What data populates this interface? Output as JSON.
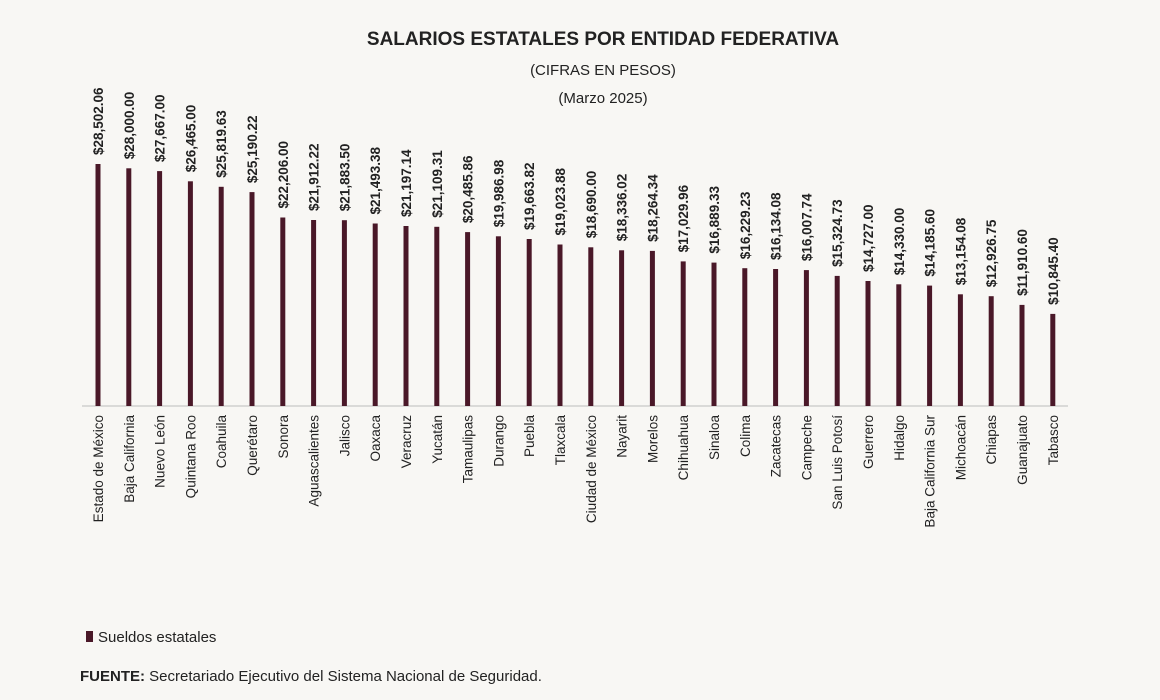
{
  "chart_data": {
    "type": "bar",
    "title": "SALARIOS ESTATALES POR ENTIDAD FEDERATIVA",
    "subtitle": "(CIFRAS EN PESOS)",
    "period": "(Marzo 2025)",
    "categories": [
      "Estado de México",
      "Baja California",
      "Nuevo León",
      "Quintana Roo",
      "Coahuila",
      "Querétaro",
      "Sonora",
      "Aguascalientes",
      "Jalisco",
      "Oaxaca",
      "Veracruz",
      "Yucatán",
      "Tamaulipas",
      "Durango",
      "Puebla",
      "Tlaxcala",
      "Ciudad de México",
      "Nayarit",
      "Morelos",
      "Chihuahua",
      "Sinaloa",
      "Colima",
      "Zacatecas",
      "Campeche",
      "San Luis Potosí",
      "Guerrero",
      "Hidalgo",
      "Baja California Sur",
      "Michoacán",
      "Chiapas",
      "Guanajuato",
      "Tabasco"
    ],
    "series": [
      {
        "name": "Sueldos estatales",
        "values": [
          28502.06,
          28000.0,
          27667.0,
          26465.0,
          25819.63,
          25190.22,
          22206.0,
          21912.22,
          21883.5,
          21493.38,
          21197.14,
          21109.31,
          20485.86,
          19986.98,
          19663.82,
          19023.88,
          18690.0,
          18336.02,
          18264.34,
          17029.96,
          16889.33,
          16229.23,
          16134.08,
          16007.74,
          15324.73,
          14727.0,
          14330.0,
          14185.6,
          13154.08,
          12926.75,
          11910.6,
          10845.4
        ],
        "labels": [
          "$28,502.06",
          "$28,000.00",
          "$27,667.00",
          "$26,465.00",
          "$25,819.63",
          "$25,190.22",
          "$22,206.00",
          "$21,912.22",
          "$21,883.50",
          "$21,493.38",
          "$21,197.14",
          "$21,109.31",
          "$20,485.86",
          "$19,986.98",
          "$19,663.82",
          "$19,023.88",
          "$18,690.00",
          "$18,336.02",
          "$18,264.34",
          "$17,029.96",
          "$16,889.33",
          "$16,229.23",
          "$16,134.08",
          "$16,007.74",
          "$15,324.73",
          "$14,727.00",
          "$14,330.00",
          "$14,185.60",
          "$13,154.08",
          "$12,926.75",
          "$11,910.60",
          "$10,845.40"
        ]
      }
    ],
    "ylim": [
      0,
      28502.06
    ],
    "grid": false,
    "legend_position": "bottom-left",
    "bar_color": "#4a1828"
  },
  "source": {
    "label": "FUENTE:",
    "text": " Secretariado Ejecutivo del Sistema Nacional de Seguridad."
  }
}
